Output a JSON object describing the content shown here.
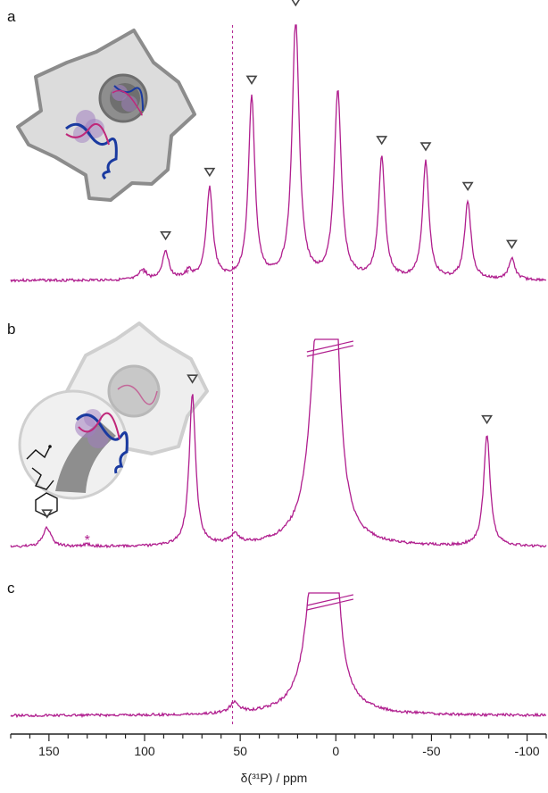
{
  "chart_data": {
    "type": "line",
    "panels": [
      "a",
      "b",
      "c"
    ],
    "xlabel": "δ(³¹P) / ppm",
    "x_ticks": [
      150,
      100,
      50,
      0,
      -50,
      -100
    ],
    "x_tick_labels": [
      "150",
      "100",
      "50",
      "0",
      "-50",
      "-100"
    ],
    "xlim": [
      170,
      -110
    ],
    "reference_line_ppm": 54,
    "series": [
      {
        "panel": "a",
        "baseline": 0.02,
        "peaks": [
          {
            "x": 101,
            "h": 0.04,
            "w": 2
          },
          {
            "x": 89,
            "h": 0.11,
            "w": 2
          },
          {
            "x": 77,
            "h": 0.03,
            "w": 2
          },
          {
            "x": 66,
            "h": 0.35,
            "w": 2
          },
          {
            "x": 44,
            "h": 0.7,
            "w": 2
          },
          {
            "x": 21,
            "h": 1.0,
            "w": 2.2
          },
          {
            "x": -1,
            "h": 0.72,
            "w": 2.2
          },
          {
            "x": -24,
            "h": 0.47,
            "w": 2
          },
          {
            "x": -47,
            "h": 0.45,
            "w": 2
          },
          {
            "x": -69,
            "h": 0.3,
            "w": 2
          },
          {
            "x": -92,
            "h": 0.08,
            "w": 2
          }
        ],
        "sideband_markers": [
          89,
          66,
          44,
          21,
          -24,
          -47,
          -69,
          -92
        ],
        "asterisks": [
          100,
          78
        ]
      },
      {
        "panel": "b",
        "baseline": 0.02,
        "peaks": [
          {
            "x": 151,
            "h": 0.08,
            "w": 2.5
          },
          {
            "x": 130,
            "h": 0.01,
            "w": 2
          },
          {
            "x": 75,
            "h": 0.65,
            "w": 2
          },
          {
            "x": 53,
            "h": 0.04,
            "w": 3
          },
          {
            "x": 1,
            "h": 1.0,
            "w": 3.5
          },
          {
            "x": 9,
            "h": 0.95,
            "w": 5
          },
          {
            "x": -79,
            "h": 0.48,
            "w": 2
          }
        ],
        "sideband_markers": [
          151,
          75,
          -79
        ],
        "asterisks": [
          130
        ],
        "axis_break_ppm": 3
      },
      {
        "panel": "c",
        "baseline": 0.02,
        "peaks": [
          {
            "x": 53,
            "h": 0.05,
            "w": 3
          },
          {
            "x": 2,
            "h": 1.0,
            "w": 3.5
          },
          {
            "x": 10,
            "h": 0.95,
            "w": 5
          }
        ],
        "sideband_markers": [],
        "asterisks": [],
        "axis_break_ppm": 3
      }
    ]
  }
}
